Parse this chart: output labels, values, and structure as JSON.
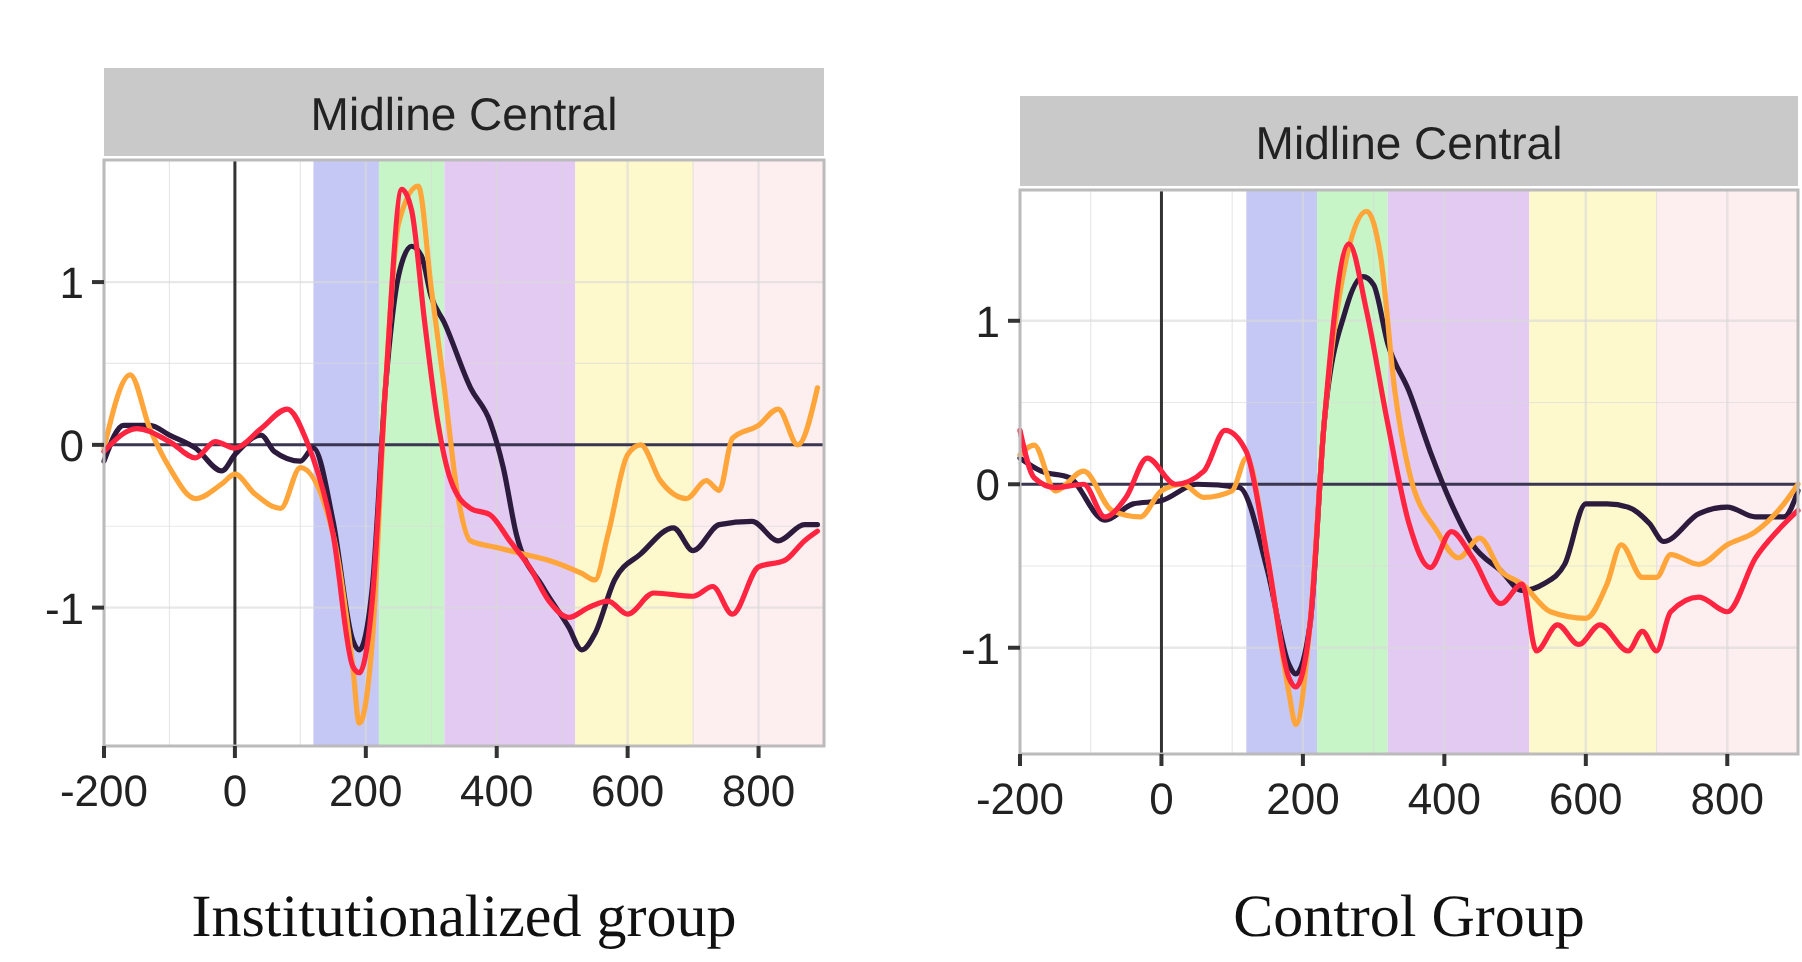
{
  "chart_data": [
    {
      "type": "line",
      "title": "Midline Central",
      "xlabel": "Institutionalized group",
      "xlim": [
        -200,
        900
      ],
      "xticks": [
        -200,
        0,
        200,
        400,
        600,
        800
      ],
      "ylim": [
        -1.85,
        1.75
      ],
      "yticks": [
        -1,
        0,
        1
      ],
      "grid": true,
      "bands": [
        {
          "axis": "x",
          "from": 120,
          "to": 220,
          "color": "#c5c8f5"
        },
        {
          "axis": "x",
          "from": 220,
          "to": 320,
          "color": "#c8f5c8"
        },
        {
          "axis": "x",
          "from": 320,
          "to": 520,
          "color": "#e3caf2"
        },
        {
          "axis": "x",
          "from": 520,
          "to": 700,
          "color": "#fdf9cc"
        },
        {
          "axis": "x",
          "from": 700,
          "to": 900,
          "color": "#fdeef0"
        }
      ],
      "ref_lines": [
        {
          "axis": "y",
          "value": 0,
          "color": "#3a3550"
        },
        {
          "axis": "x",
          "value": 0,
          "color": "#333333"
        }
      ],
      "series": [
        {
          "color": "#2d1b3d",
          "x": [
            -200,
            -170,
            -130,
            -100,
            -60,
            -20,
            0,
            40,
            60,
            100,
            120,
            150,
            180,
            190,
            210,
            230,
            250,
            270,
            285,
            300,
            320,
            360,
            390,
            410,
            430,
            470,
            510,
            530,
            550,
            580,
            620,
            670,
            700,
            740,
            790,
            830,
            870,
            890
          ],
          "values": [
            -0.1,
            0.12,
            0.12,
            0.06,
            -0.02,
            -0.16,
            -0.06,
            0.06,
            -0.04,
            -0.1,
            -0.02,
            -0.47,
            -1.2,
            -1.26,
            -0.87,
            0.35,
            1.04,
            1.22,
            1.16,
            0.91,
            0.75,
            0.35,
            0.14,
            -0.14,
            -0.55,
            -0.87,
            -1.12,
            -1.26,
            -1.16,
            -0.83,
            -0.67,
            -0.51,
            -0.65,
            -0.49,
            -0.47,
            -0.59,
            -0.49,
            -0.49
          ]
        },
        {
          "color": "#ffa53a",
          "x": [
            -200,
            -160,
            -130,
            -100,
            -60,
            -20,
            0,
            30,
            70,
            100,
            150,
            180,
            190,
            210,
            230,
            250,
            280,
            300,
            320,
            340,
            360,
            400,
            440,
            480,
            530,
            550,
            570,
            600,
            620,
            650,
            690,
            720,
            740,
            760,
            800,
            830,
            860,
            890
          ],
          "values": [
            -0.02,
            0.43,
            0.1,
            -0.14,
            -0.33,
            -0.24,
            -0.18,
            -0.3,
            -0.39,
            -0.14,
            -0.55,
            -1.36,
            -1.71,
            -1.2,
            0.35,
            1.36,
            1.59,
            0.96,
            0.35,
            -0.3,
            -0.59,
            -0.63,
            -0.67,
            -0.71,
            -0.79,
            -0.83,
            -0.55,
            -0.06,
            0,
            -0.22,
            -0.33,
            -0.22,
            -0.28,
            0.04,
            0.12,
            0.22,
            0,
            0.35
          ]
        },
        {
          "color": "#ff2440",
          "x": [
            -200,
            -150,
            -100,
            -60,
            -30,
            0,
            40,
            80,
            110,
            150,
            180,
            190,
            210,
            230,
            255,
            270,
            290,
            310,
            330,
            360,
            390,
            420,
            450,
            480,
            510,
            540,
            570,
            600,
            640,
            700,
            730,
            760,
            800,
            840,
            870,
            890
          ],
          "values": [
            -0.04,
            0.1,
            0.02,
            -0.08,
            0.02,
            -0.02,
            0.1,
            0.22,
            0.02,
            -0.55,
            -1.36,
            -1.4,
            -0.95,
            0.35,
            1.57,
            1.44,
            0.75,
            0.14,
            -0.22,
            -0.39,
            -0.43,
            -0.59,
            -0.75,
            -0.96,
            -1.06,
            -1,
            -0.96,
            -1.04,
            -0.91,
            -0.93,
            -0.87,
            -1.04,
            -0.75,
            -0.71,
            -0.59,
            -0.53
          ]
        }
      ]
    },
    {
      "type": "line",
      "title": "Midline Central",
      "xlabel": "Control Group",
      "xlim": [
        -200,
        900
      ],
      "xticks": [
        -200,
        0,
        200,
        400,
        600,
        800
      ],
      "ylim": [
        -1.65,
        1.8
      ],
      "yticks": [
        -1,
        0,
        1
      ],
      "grid": true,
      "bands": [
        {
          "axis": "x",
          "from": 120,
          "to": 220,
          "color": "#c5c8f5"
        },
        {
          "axis": "x",
          "from": 220,
          "to": 320,
          "color": "#c8f5c8"
        },
        {
          "axis": "x",
          "from": 320,
          "to": 520,
          "color": "#e3caf2"
        },
        {
          "axis": "x",
          "from": 520,
          "to": 700,
          "color": "#fdf9cc"
        },
        {
          "axis": "x",
          "from": 700,
          "to": 900,
          "color": "#fdeef0"
        }
      ],
      "ref_lines": [
        {
          "axis": "y",
          "value": 0,
          "color": "#3a3550"
        },
        {
          "axis": "x",
          "value": 0,
          "color": "#333333"
        }
      ],
      "series": [
        {
          "color": "#2d1b3d",
          "x": [
            -200,
            -170,
            -130,
            -80,
            -40,
            0,
            50,
            110,
            150,
            180,
            190,
            210,
            230,
            260,
            285,
            300,
            320,
            350,
            380,
            410,
            440,
            480,
            510,
            540,
            570,
            600,
            630,
            660,
            690,
            710,
            760,
            800,
            840,
            880,
            900
          ],
          "values": [
            0.16,
            0.08,
            0.04,
            -0.22,
            -0.12,
            -0.1,
            0,
            -0.02,
            -0.53,
            -1.1,
            -1.16,
            -0.86,
            0.37,
            1.06,
            1.27,
            1.22,
            0.86,
            0.57,
            0.2,
            -0.12,
            -0.37,
            -0.53,
            -0.65,
            -0.61,
            -0.49,
            -0.12,
            -0.12,
            -0.14,
            -0.24,
            -0.35,
            -0.18,
            -0.14,
            -0.2,
            -0.2,
            -0.04
          ]
        },
        {
          "color": "#ffa53a",
          "x": [
            -200,
            -180,
            -150,
            -110,
            -70,
            -30,
            0,
            30,
            60,
            100,
            120,
            150,
            180,
            190,
            210,
            230,
            260,
            290,
            310,
            330,
            350,
            390,
            420,
            450,
            480,
            510,
            550,
            600,
            630,
            650,
            680,
            700,
            720,
            760,
            800,
            840,
            880,
            900
          ],
          "values": [
            0.18,
            0.24,
            -0.04,
            0.08,
            -0.16,
            -0.2,
            -0.04,
            0,
            -0.08,
            -0.04,
            0.16,
            -0.45,
            -1.27,
            -1.47,
            -0.86,
            0.37,
            1.35,
            1.67,
            1.39,
            0.57,
            0.08,
            -0.29,
            -0.45,
            -0.33,
            -0.53,
            -0.61,
            -0.78,
            -0.82,
            -0.61,
            -0.37,
            -0.57,
            -0.57,
            -0.43,
            -0.49,
            -0.37,
            -0.29,
            -0.12,
            0
          ]
        },
        {
          "color": "#ff2440",
          "x": [
            -200,
            -180,
            -150,
            -110,
            -80,
            -50,
            -20,
            20,
            60,
            90,
            120,
            150,
            180,
            190,
            210,
            230,
            265,
            290,
            320,
            350,
            380,
            410,
            440,
            480,
            510,
            530,
            560,
            590,
            620,
            660,
            680,
            700,
            720,
            760,
            800,
            840,
            870,
            900
          ],
          "values": [
            0.33,
            0.04,
            -0.02,
            0,
            -0.2,
            -0.08,
            0.16,
            0,
            0.08,
            0.33,
            0.2,
            -0.45,
            -1.18,
            -1.24,
            -0.86,
            0.37,
            1.47,
            1.06,
            0.37,
            -0.24,
            -0.51,
            -0.29,
            -0.45,
            -0.73,
            -0.61,
            -1.02,
            -0.86,
            -0.98,
            -0.86,
            -1.02,
            -0.9,
            -1.02,
            -0.78,
            -0.69,
            -0.78,
            -0.45,
            -0.29,
            -0.16
          ]
        }
      ]
    }
  ]
}
